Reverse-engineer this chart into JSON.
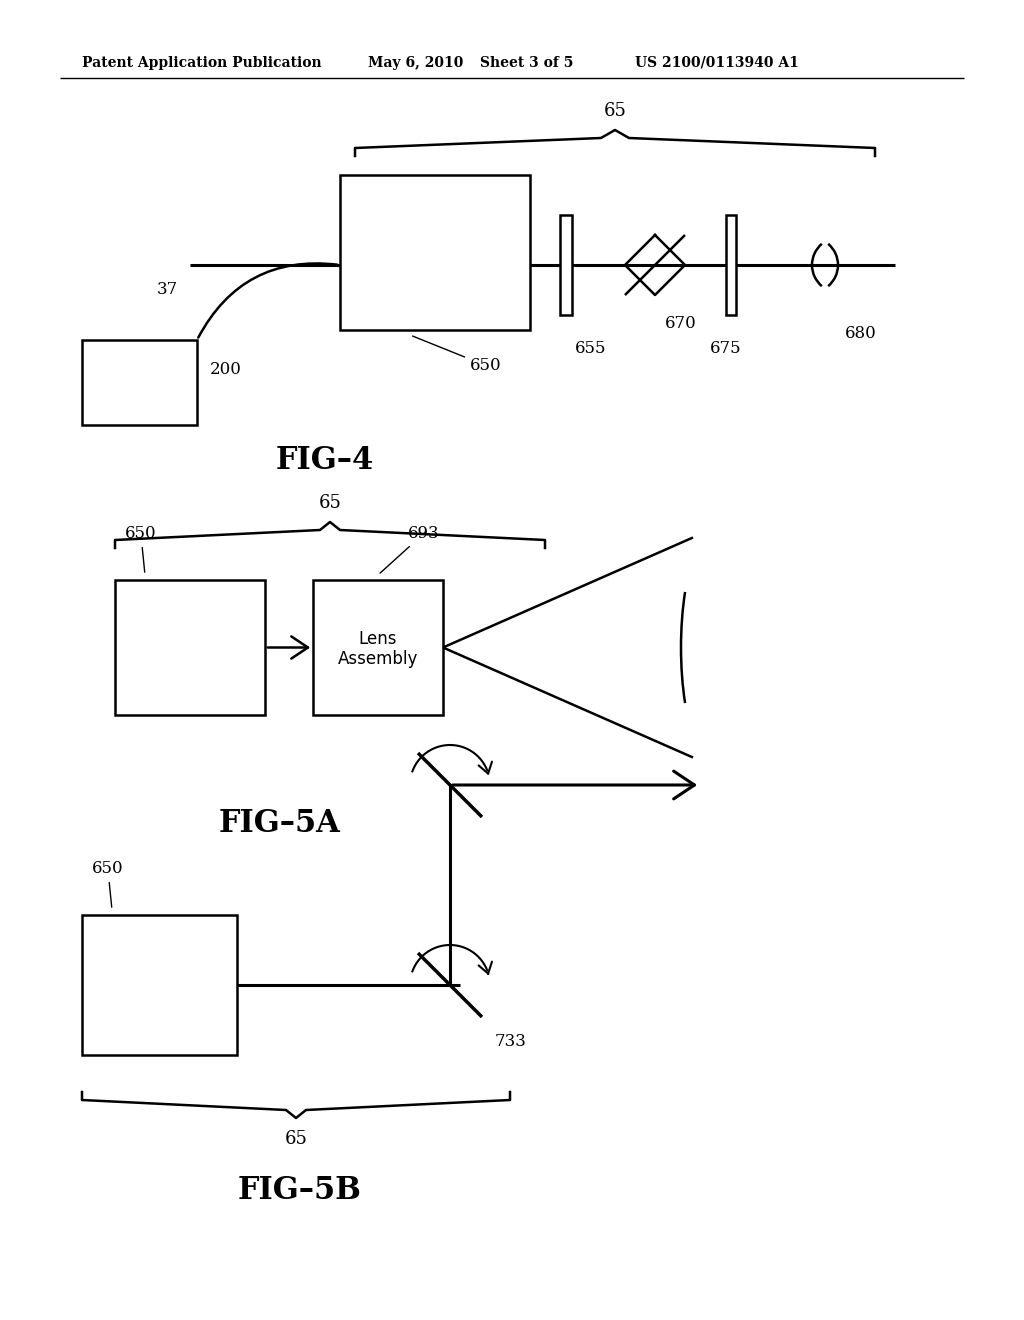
{
  "bg_color": "#ffffff",
  "header_text": "Patent Application Publication",
  "header_date": "May 6, 2010",
  "header_sheet": "Sheet 3 of 5",
  "header_patent": "US 2100/0113940 A1",
  "fig4_label": "FIG–4",
  "fig5a_label": "FIG–5A",
  "fig5b_label": "FIG–5B",
  "lc": "#000000",
  "lw": 1.8
}
